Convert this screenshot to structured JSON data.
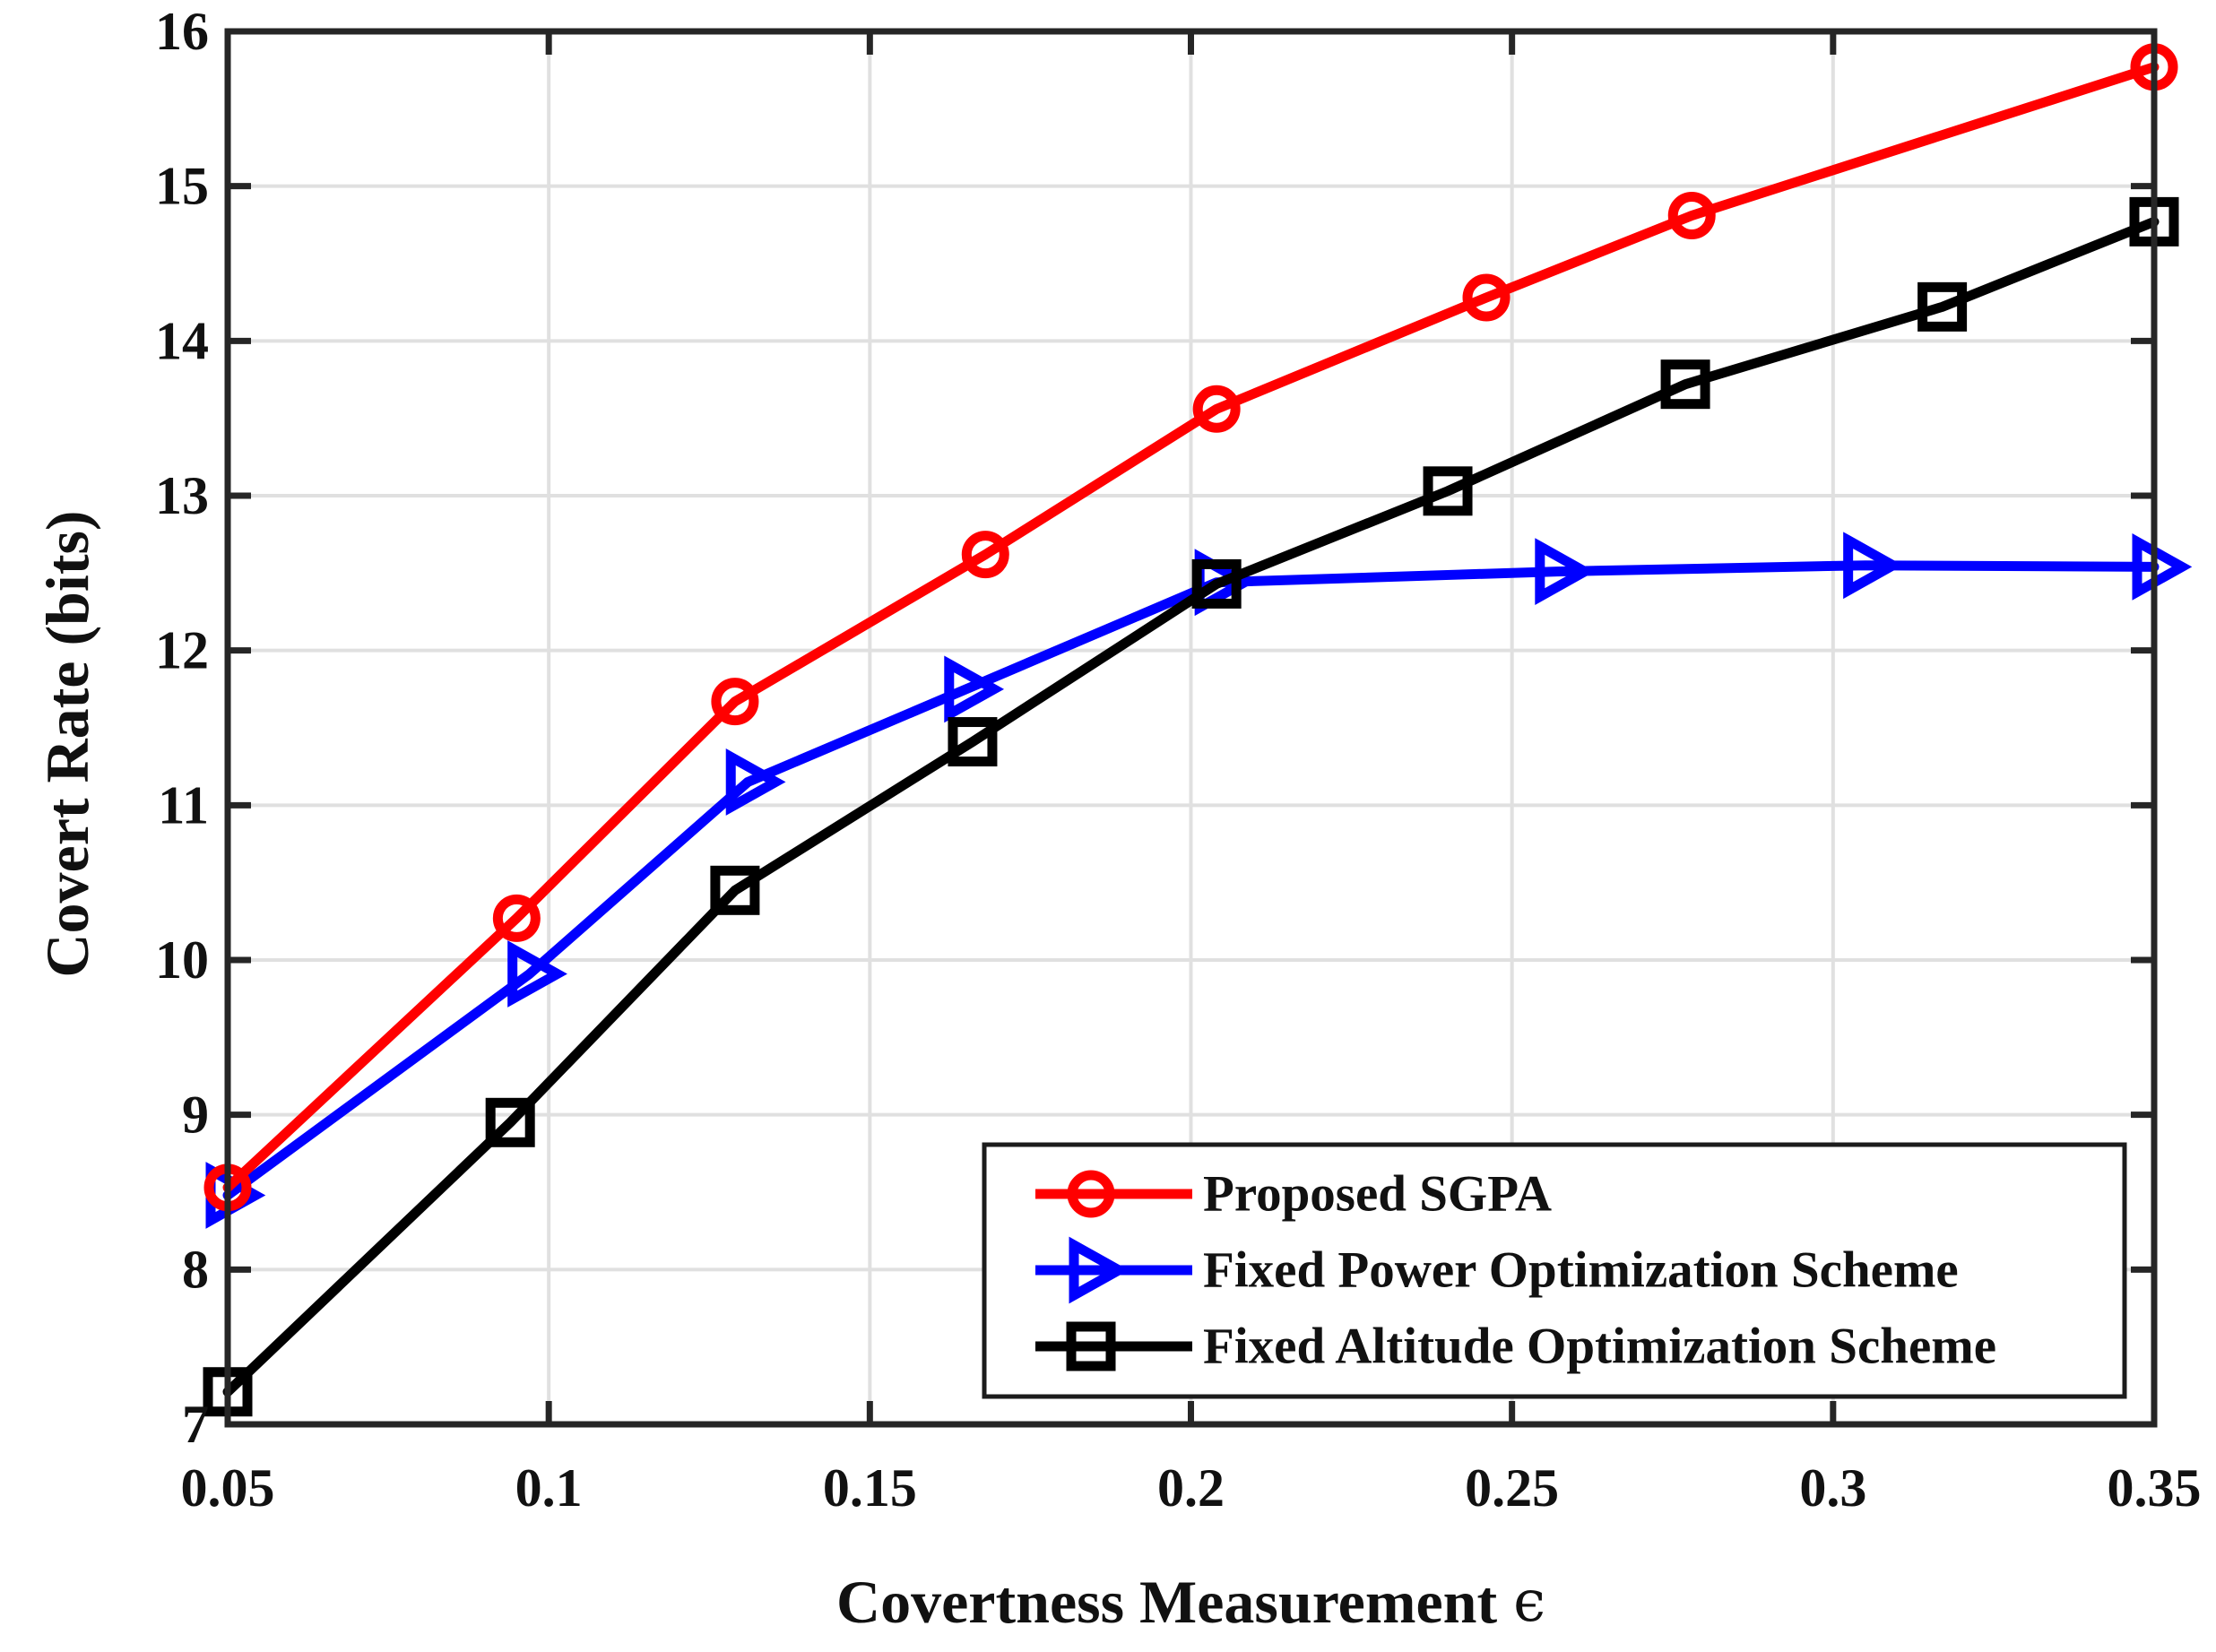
{
  "figure": {
    "background": "#ffffff",
    "axis_color": "#262626",
    "grid_color": "#e0e0e0",
    "text_color": "#111111",
    "legend_border_color": "#1c1c1c",
    "legend_background": "#ffffff"
  },
  "chart_data": {
    "type": "line",
    "title": "",
    "xlabel": "Covertness Measurement",
    "xlabel_symbol": "ϵ",
    "ylabel": "Covert Rate (bits)",
    "xlim": [
      0.05,
      0.35
    ],
    "ylim": [
      7,
      16
    ],
    "grid": true,
    "legend_position": "inside lower right",
    "x_ticks": [
      0.05,
      0.1,
      0.15,
      0.2,
      0.25,
      0.3,
      0.35
    ],
    "x_tick_labels": [
      "0.05",
      "0.1",
      "0.15",
      "0.2",
      "0.25",
      "0.3",
      "0.35"
    ],
    "y_ticks": [
      7,
      8,
      9,
      10,
      11,
      12,
      13,
      14,
      15,
      16
    ],
    "y_tick_labels": [
      "7",
      "8",
      "9",
      "10",
      "11",
      "12",
      "13",
      "14",
      "15",
      "16"
    ],
    "series": [
      {
        "name": "Proposed SGPA",
        "color": "#ff0000",
        "marker": "circle",
        "x": [
          0.05,
          0.095,
          0.129,
          0.168,
          0.204,
          0.246,
          0.278,
          0.35
        ],
        "y": [
          8.53,
          10.27,
          11.67,
          12.62,
          13.56,
          14.28,
          14.81,
          15.77
        ]
      },
      {
        "name": "Fixed Power Optimization Scheme",
        "color": "#0000ff",
        "marker": "triangle-right",
        "x": [
          0.05,
          0.097,
          0.131,
          0.165,
          0.204,
          0.257,
          0.305,
          0.35
        ],
        "y": [
          8.48,
          9.91,
          11.15,
          11.75,
          12.44,
          12.51,
          12.55,
          12.54
        ]
      },
      {
        "name": "Fixed Altitude Optimization Scheme",
        "color": "#000000",
        "marker": "square",
        "x": [
          0.05,
          0.094,
          0.129,
          0.166,
          0.204,
          0.24,
          0.277,
          0.317,
          0.35
        ],
        "y": [
          7.21,
          8.95,
          10.45,
          11.41,
          12.43,
          13.03,
          13.72,
          14.22,
          14.77
        ]
      }
    ]
  }
}
